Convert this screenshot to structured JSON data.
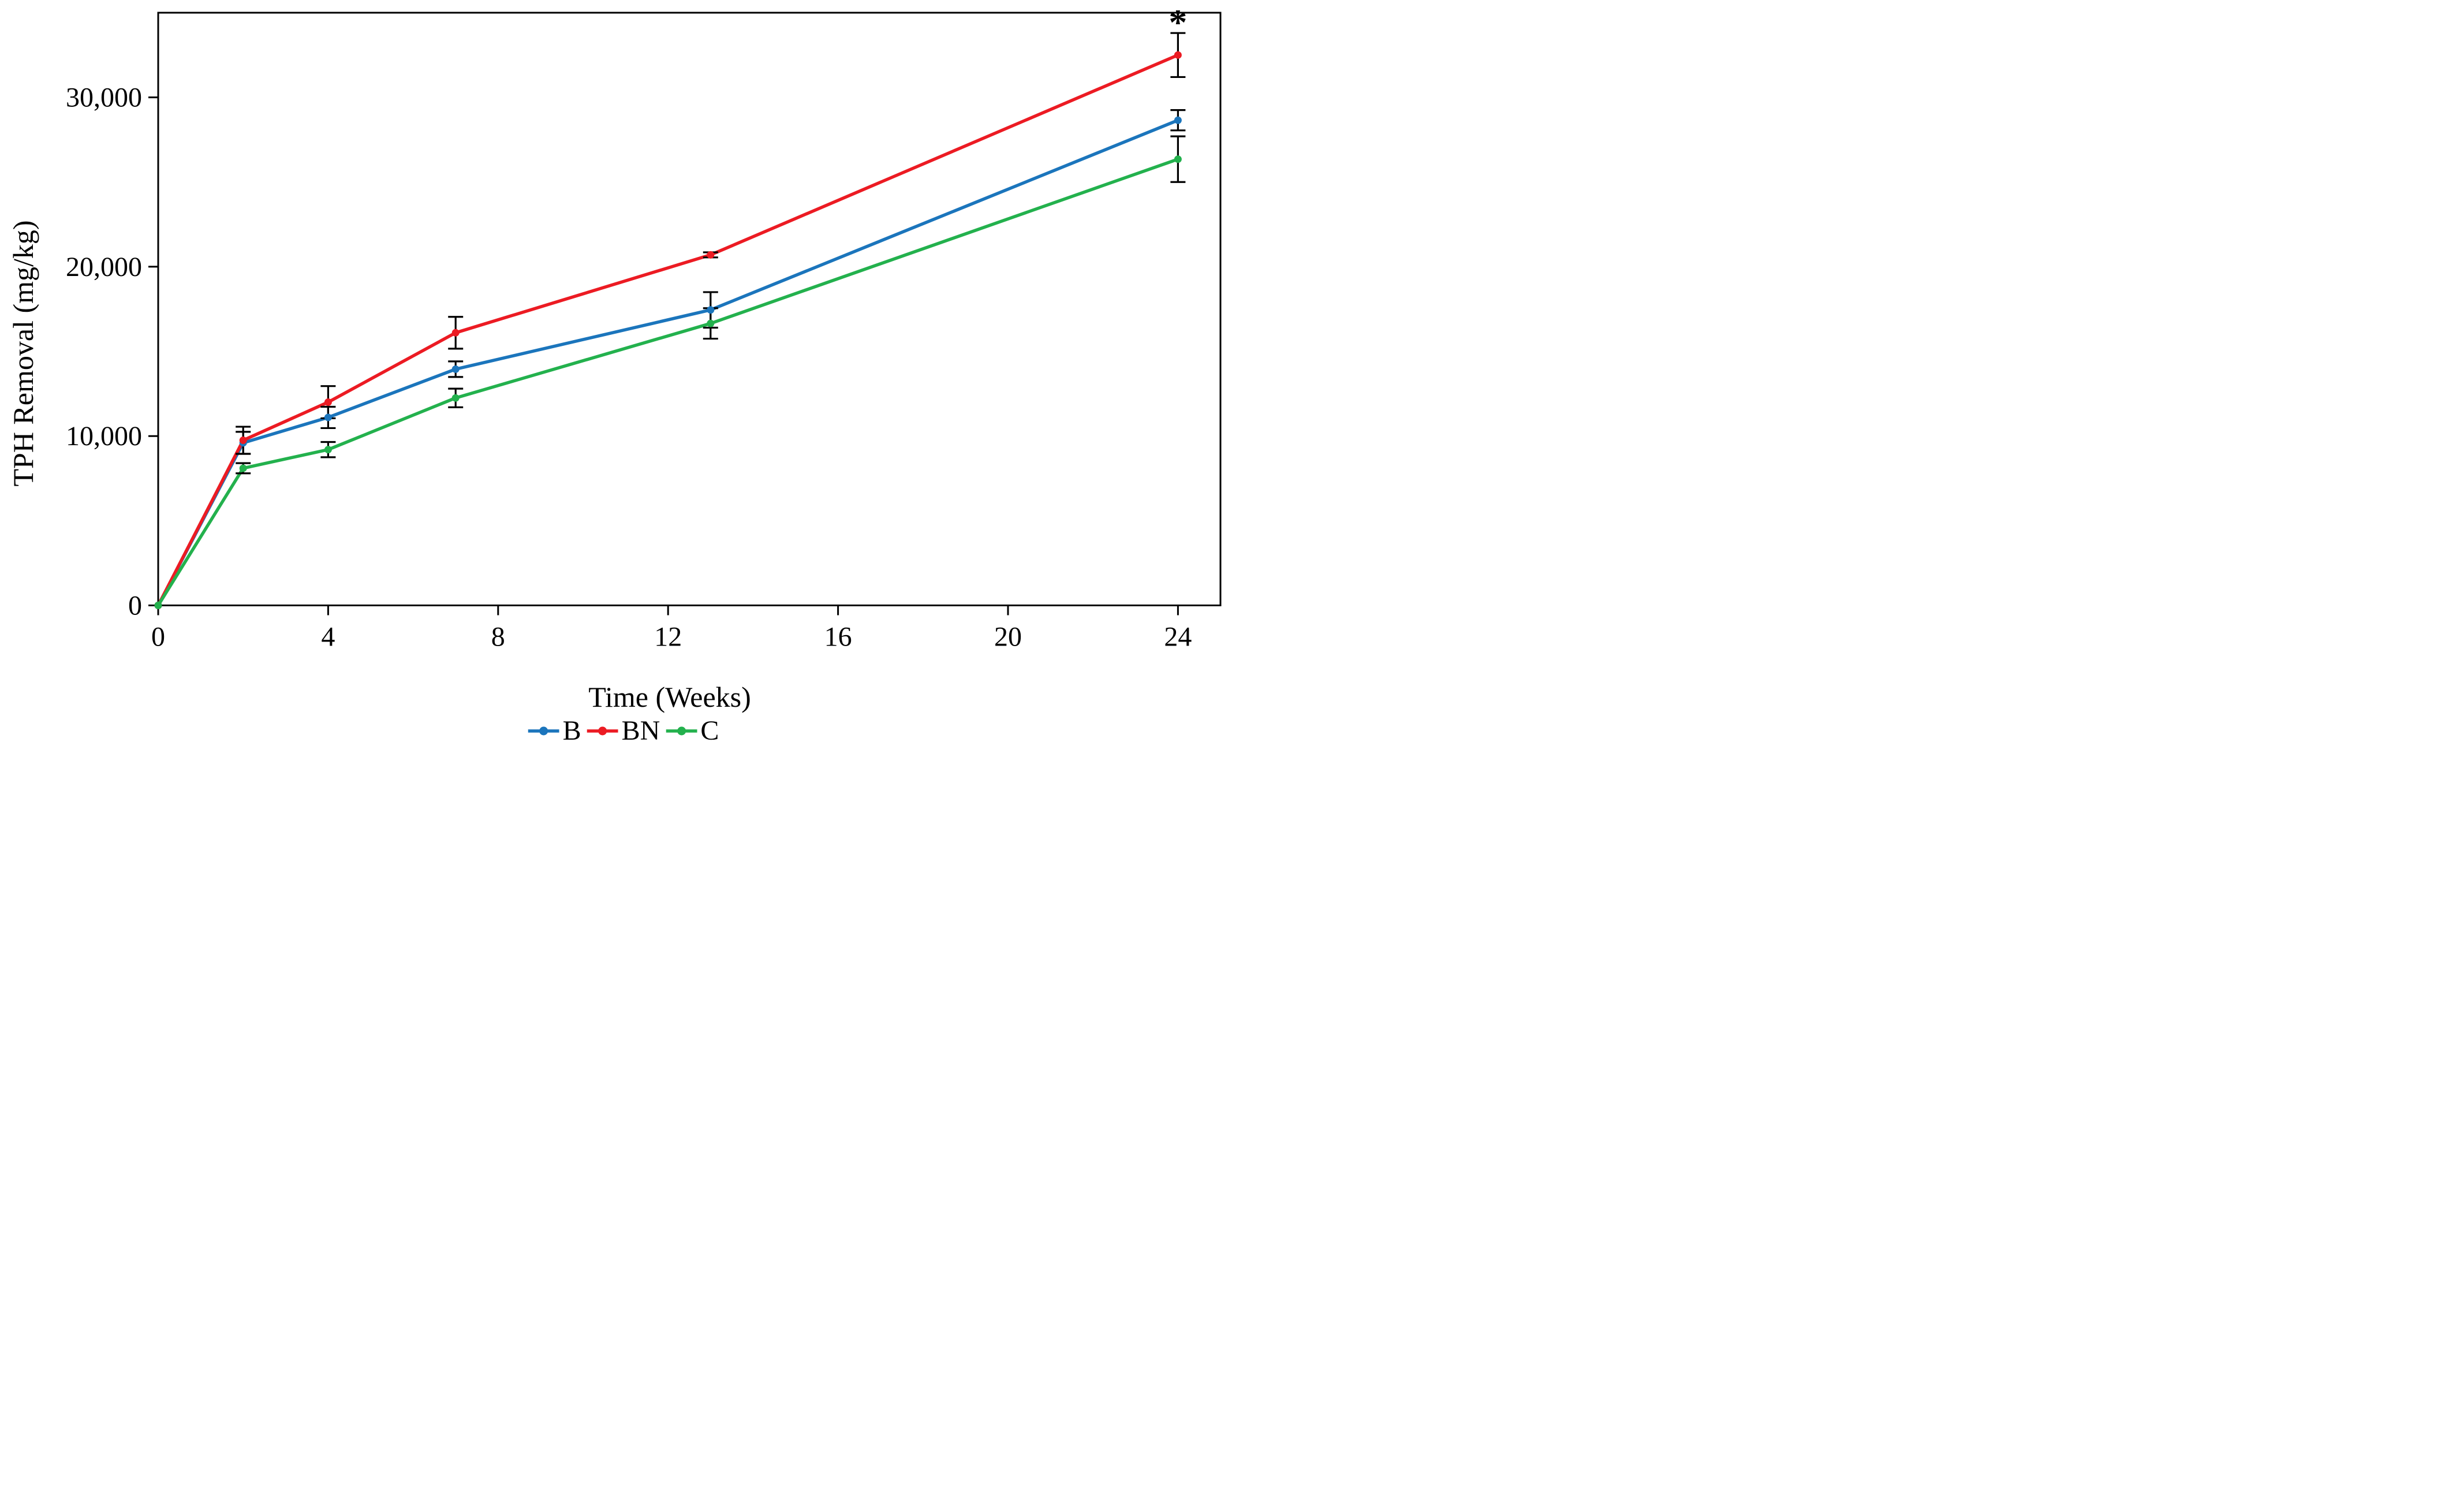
{
  "figure_title": "",
  "chart_data": {
    "type": "line",
    "xlabel": "Time (Weeks)",
    "ylabel": "TPH Removal (mg/kg)",
    "x": [
      0,
      2,
      4,
      7,
      13,
      24
    ],
    "xlim": [
      0,
      25
    ],
    "ylim": [
      0,
      35000
    ],
    "xticks": [
      0,
      4,
      8,
      12,
      16,
      20,
      24
    ],
    "xtick_labels": [
      "0",
      "4",
      "8",
      "12",
      "16",
      "20",
      "24"
    ],
    "yticks": [
      0,
      10000,
      20000,
      30000
    ],
    "ytick_labels": [
      "0",
      "10,000",
      "20,000",
      "30,000"
    ],
    "grid": false,
    "legend_position": "bottom",
    "series": [
      {
        "name": "B",
        "color": "#1B75BC",
        "values": [
          0,
          9600,
          11100,
          13950,
          17450,
          28650
        ],
        "errors": [
          0,
          650,
          630,
          460,
          1050,
          600
        ]
      },
      {
        "name": "BN",
        "color": "#EC1B23",
        "values": [
          0,
          9750,
          12000,
          16100,
          20700,
          32500
        ],
        "errors": [
          0,
          800,
          950,
          940,
          150,
          1300
        ]
      },
      {
        "name": "C",
        "color": "#23B14D",
        "values": [
          0,
          8100,
          9200,
          12250,
          16650,
          26350
        ],
        "errors": [
          0,
          300,
          450,
          550,
          900,
          1350
        ]
      }
    ],
    "annotation": {
      "text": "*",
      "x": 24,
      "series": "BN"
    }
  },
  "style": {
    "axis_color": "#000000",
    "error_bar_color": "#000000",
    "background": "#FFFFFF"
  }
}
